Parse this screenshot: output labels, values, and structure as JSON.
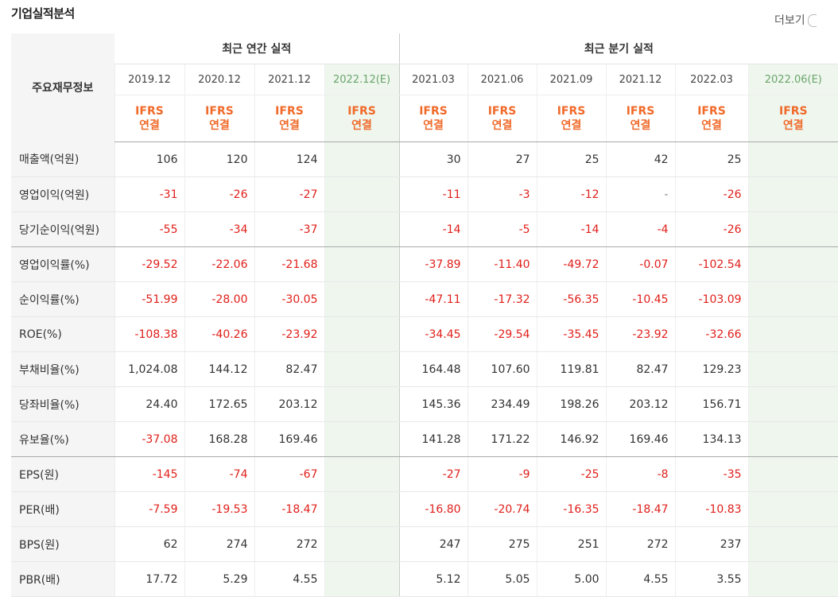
{
  "section_title": "기업실적분석",
  "more_label": "더보기",
  "header": {
    "row_label": "주요재무정보",
    "annual_group": "최근 연간 실적",
    "quarter_group": "최근 분기 실적",
    "periods": [
      "2019.12",
      "2020.12",
      "2021.12",
      "2022.12(E)",
      "2021.03",
      "2021.06",
      "2021.09",
      "2021.12",
      "2022.03",
      "2022.06(E)"
    ],
    "standard_line1": "IFRS",
    "standard_line2": "연결"
  },
  "rows": [
    {
      "name": "매출액(억원)",
      "values": [
        "106",
        "120",
        "124",
        "",
        "30",
        "27",
        "25",
        "42",
        "25",
        ""
      ]
    },
    {
      "name": "영업이익(억원)",
      "values": [
        "-31",
        "-26",
        "-27",
        "",
        "-11",
        "-3",
        "-12",
        "-",
        "-26",
        ""
      ]
    },
    {
      "name": "당기순이익(억원)",
      "values": [
        "-55",
        "-34",
        "-37",
        "",
        "-14",
        "-5",
        "-14",
        "-4",
        "-26",
        ""
      ]
    },
    {
      "name": "영업이익률(%)",
      "values": [
        "-29.52",
        "-22.06",
        "-21.68",
        "",
        "-37.89",
        "-11.40",
        "-49.72",
        "-0.07",
        "-102.54",
        ""
      ]
    },
    {
      "name": "순이익률(%)",
      "values": [
        "-51.99",
        "-28.00",
        "-30.05",
        "",
        "-47.11",
        "-17.32",
        "-56.35",
        "-10.45",
        "-103.09",
        ""
      ]
    },
    {
      "name": "ROE(%)",
      "values": [
        "-108.38",
        "-40.26",
        "-23.92",
        "",
        "-34.45",
        "-29.54",
        "-35.45",
        "-23.92",
        "-32.66",
        ""
      ]
    },
    {
      "name": "부채비율(%)",
      "values": [
        "1,024.08",
        "144.12",
        "82.47",
        "",
        "164.48",
        "107.60",
        "119.81",
        "82.47",
        "129.23",
        ""
      ]
    },
    {
      "name": "당좌비율(%)",
      "values": [
        "24.40",
        "172.65",
        "203.12",
        "",
        "145.36",
        "234.49",
        "198.26",
        "203.12",
        "156.71",
        ""
      ]
    },
    {
      "name": "유보율(%)",
      "values": [
        "-37.08",
        "168.28",
        "169.46",
        "",
        "141.28",
        "171.22",
        "146.92",
        "169.46",
        "134.13",
        ""
      ]
    },
    {
      "name": "EPS(원)",
      "values": [
        "-145",
        "-74",
        "-67",
        "",
        "-27",
        "-9",
        "-25",
        "-8",
        "-35",
        ""
      ]
    },
    {
      "name": "PER(배)",
      "values": [
        "-7.59",
        "-19.53",
        "-18.47",
        "",
        "-16.80",
        "-20.74",
        "-16.35",
        "-18.47",
        "-10.83",
        ""
      ]
    },
    {
      "name": "BPS(원)",
      "values": [
        "62",
        "274",
        "272",
        "",
        "247",
        "275",
        "251",
        "272",
        "237",
        ""
      ]
    },
    {
      "name": "PBR(배)",
      "values": [
        "17.72",
        "5.29",
        "4.55",
        "",
        "5.12",
        "5.05",
        "5.00",
        "4.55",
        "3.55",
        ""
      ]
    }
  ],
  "colors": {
    "negative": "#e0201b",
    "standard": "#f06a2a",
    "estimate_bg": "#eef6ee"
  }
}
